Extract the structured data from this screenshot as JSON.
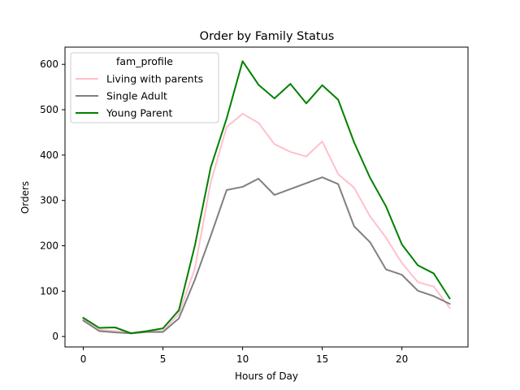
{
  "chart_data": {
    "type": "line",
    "title": "Order by Family Status",
    "xlabel": "Hours of Day",
    "ylabel": "Orders",
    "xlim": [
      -1.15,
      24.15
    ],
    "ylim": [
      -23,
      638
    ],
    "x_ticks": [
      0,
      5,
      10,
      15,
      20
    ],
    "y_ticks": [
      0,
      100,
      200,
      300,
      400,
      500,
      600
    ],
    "grid": false,
    "legend": {
      "title": "fam_profile",
      "placement": "top-left"
    },
    "x": [
      0,
      1,
      2,
      3,
      4,
      5,
      6,
      7,
      8,
      9,
      10,
      11,
      12,
      13,
      14,
      15,
      16,
      17,
      18,
      19,
      20,
      21,
      22,
      23
    ],
    "series": [
      {
        "name": "Living with parents",
        "color": "#ffc0cb",
        "values": [
          38,
          15,
          12,
          8,
          12,
          12,
          50,
          150,
          340,
          462,
          491,
          471,
          424,
          407,
          397,
          430,
          358,
          328,
          265,
          218,
          162,
          120,
          110,
          63
        ]
      },
      {
        "name": "Single Adult",
        "color": "#808080",
        "values": [
          35,
          12,
          9,
          7,
          10,
          10,
          40,
          125,
          222,
          323,
          330,
          348,
          312,
          325,
          338,
          351,
          336,
          243,
          208,
          148,
          136,
          101,
          89,
          72
        ]
      },
      {
        "name": "Young Parent",
        "color": "#008000",
        "values": [
          41,
          19,
          20,
          7,
          12,
          18,
          58,
          200,
          373,
          481,
          607,
          555,
          525,
          557,
          514,
          554,
          522,
          428,
          350,
          287,
          203,
          157,
          139,
          84
        ]
      }
    ]
  }
}
